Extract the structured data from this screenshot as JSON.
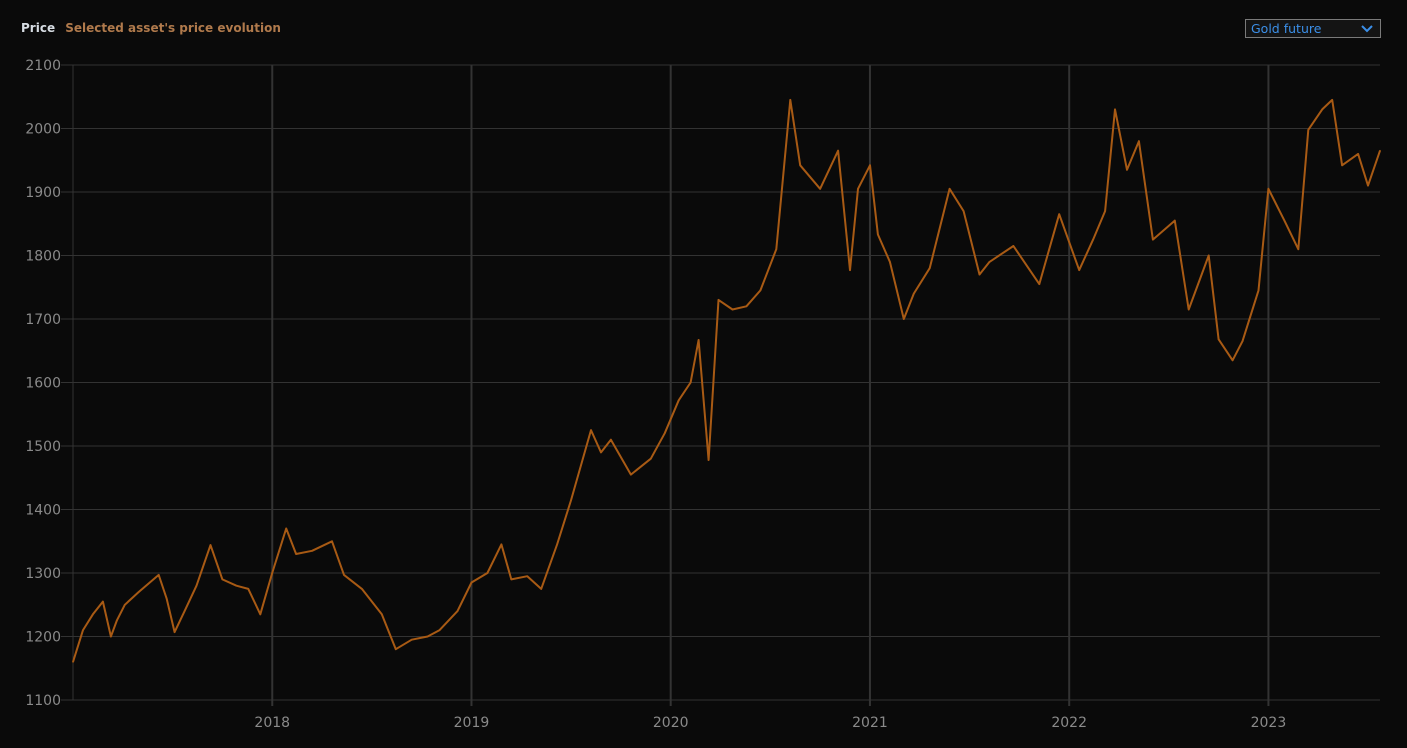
{
  "header": {
    "title": "Price",
    "subtitle": "Selected asset's price evolution"
  },
  "asset_select": {
    "value": "Gold future",
    "icon": "chevron-down-icon"
  },
  "colors": {
    "line": "#a85a14",
    "grid": "#333333",
    "background": "#0a0a0a",
    "select_text": "#3b8fe8"
  },
  "chart_data": {
    "type": "line",
    "title": "",
    "xlabel": "",
    "ylabel": "",
    "xlim": [
      2017.0,
      2023.56
    ],
    "ylim": [
      1100,
      2100
    ],
    "grid": true,
    "x_ticks": [
      2018,
      2019,
      2020,
      2021,
      2022,
      2023
    ],
    "x_tick_labels": [
      "2018",
      "2019",
      "2020",
      "2021",
      "2022",
      "2023"
    ],
    "y_ticks": [
      1100,
      1200,
      1300,
      1400,
      1500,
      1600,
      1700,
      1800,
      1900,
      2000,
      2100
    ],
    "y_tick_labels": [
      "1100",
      "1200",
      "1300",
      "1400",
      "1500",
      "1600",
      "1700",
      "1800",
      "1900",
      "2000",
      "2100"
    ],
    "series": [
      {
        "x": [
          2017.0,
          2017.05,
          2017.1,
          2017.15,
          2017.19,
          2017.22,
          2017.26,
          2017.33,
          2017.43,
          2017.47,
          2017.51,
          2017.56,
          2017.62,
          2017.69,
          2017.75,
          2017.82,
          2017.88,
          2017.94,
          2018.0,
          2018.07,
          2018.12,
          2018.2,
          2018.3,
          2018.36,
          2018.45,
          2018.55,
          2018.62,
          2018.7,
          2018.78,
          2018.84,
          2018.93,
          2019.0,
          2019.08,
          2019.15,
          2019.2,
          2019.28,
          2019.35,
          2019.43,
          2019.5,
          2019.6,
          2019.65,
          2019.7,
          2019.8,
          2019.9,
          2019.97,
          2020.04,
          2020.1,
          2020.14,
          2020.19,
          2020.24,
          2020.31,
          2020.38,
          2020.45,
          2020.53,
          2020.6,
          2020.65,
          2020.75,
          2020.84,
          2020.9,
          2020.94,
          2021.0,
          2021.04,
          2021.1,
          2021.17,
          2021.22,
          2021.3,
          2021.4,
          2021.47,
          2021.55,
          2021.6,
          2021.72,
          2021.85,
          2021.95,
          2022.05,
          2022.12,
          2022.18,
          2022.23,
          2022.29,
          2022.35,
          2022.42,
          2022.53,
          2022.6,
          2022.7,
          2022.75,
          2022.82,
          2022.87,
          2022.95,
          2023.0,
          2023.08,
          2023.15,
          2023.2,
          2023.27,
          2023.32,
          2023.37,
          2023.45,
          2023.5,
          2023.56
        ],
        "y": [
          1160,
          1210,
          1235,
          1255,
          1200,
          1225,
          1250,
          1270,
          1297,
          1260,
          1207,
          1240,
          1280,
          1344,
          1290,
          1280,
          1275,
          1235,
          1300,
          1370,
          1330,
          1335,
          1350,
          1297,
          1275,
          1235,
          1180,
          1195,
          1200,
          1210,
          1240,
          1285,
          1300,
          1345,
          1290,
          1295,
          1275,
          1345,
          1415,
          1525,
          1490,
          1510,
          1455,
          1480,
          1520,
          1572,
          1600,
          1667,
          1478,
          1730,
          1715,
          1720,
          1745,
          1810,
          2045,
          1942,
          1905,
          1965,
          1777,
          1905,
          1942,
          1833,
          1790,
          1700,
          1740,
          1780,
          1905,
          1870,
          1770,
          1790,
          1815,
          1755,
          1865,
          1777,
          1825,
          1870,
          2030,
          1935,
          1980,
          1825,
          1855,
          1715,
          1800,
          1668,
          1635,
          1665,
          1745,
          1905,
          1855,
          1810,
          1998,
          2030,
          2045,
          1942,
          1960,
          1910,
          1965
        ]
      }
    ]
  }
}
